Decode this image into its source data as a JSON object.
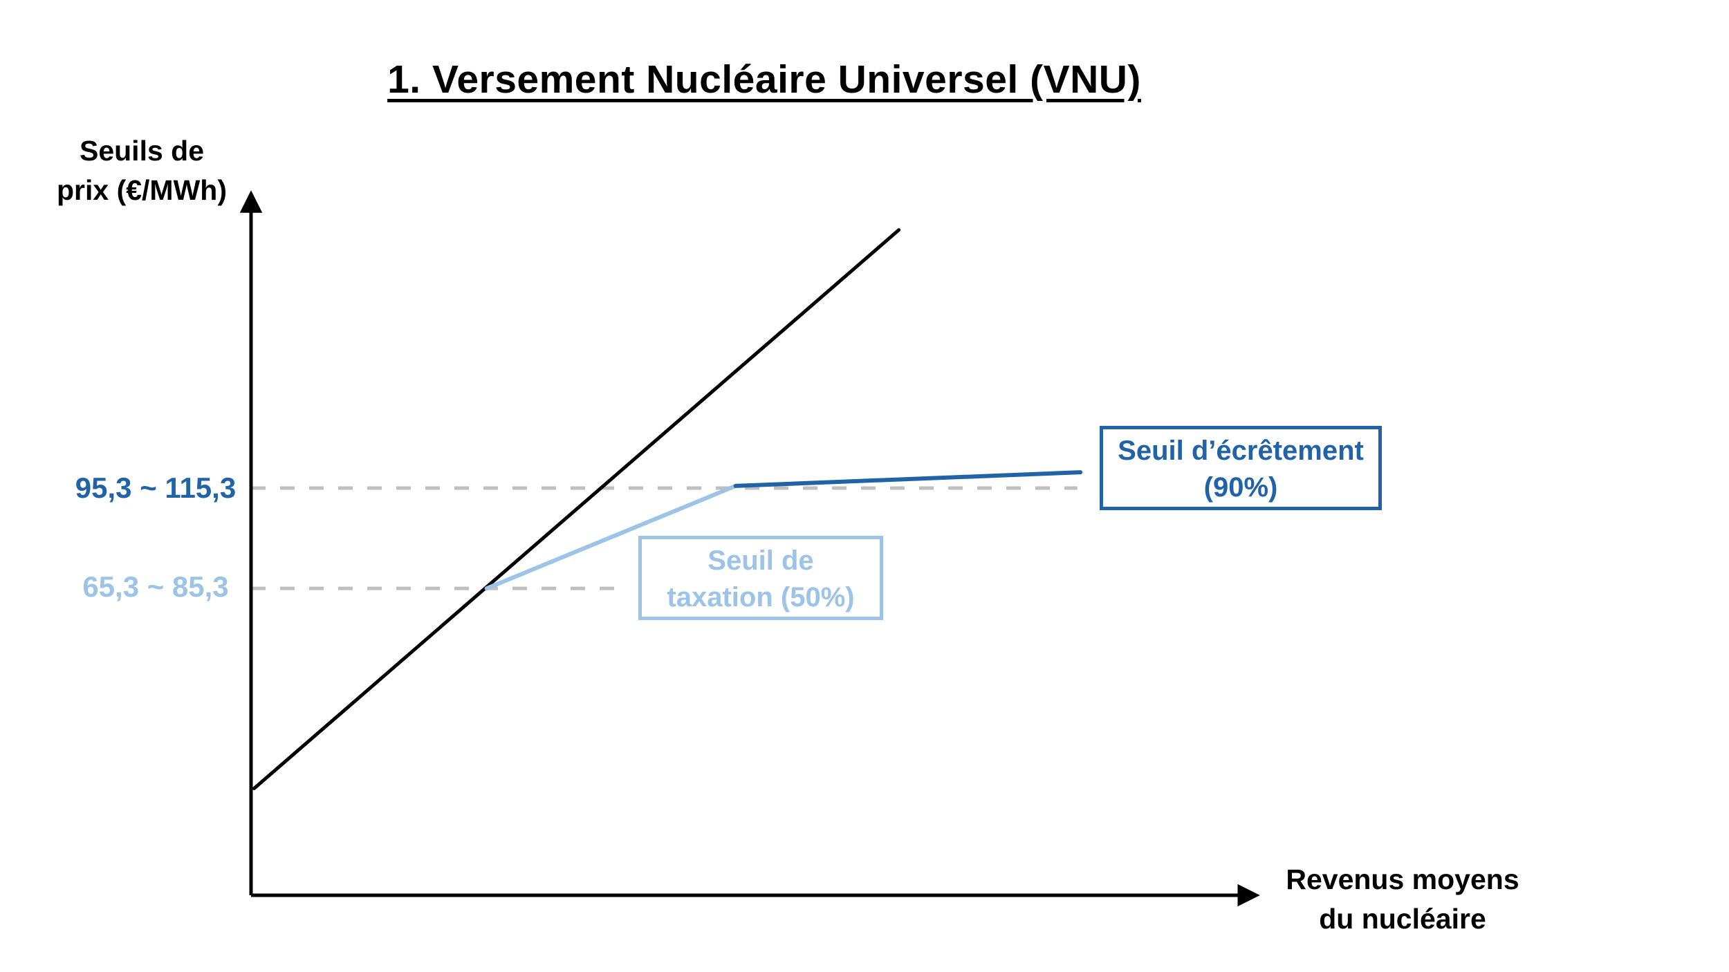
{
  "page": {
    "background": "#FFFFFF"
  },
  "chart_data": {
    "type": "line",
    "title": "1. Versement Nucléaire Universel (VNU)",
    "xlabel": "Revenus moyens du nucléaire",
    "xlabel_lines": [
      "Revenus moyens",
      "du nucléaire"
    ],
    "ylabel": "Seuils de prix (€/MWh)",
    "ylabel_lines": [
      "Seuils de",
      "prix (€/MWh)"
    ],
    "grid": false,
    "axes_have_numeric_ticks": false,
    "legend": "none",
    "colors": {
      "axis": "#000000",
      "dashed_guide": "#BFBFBF",
      "taxation_light_blue": "#9DC3E6",
      "ecretement_dark_blue": "#2263A8"
    },
    "y_tick_labels": [
      {
        "name": "ecretement-threshold",
        "text": "95,3 ~ 115,3",
        "values": [
          95.3,
          115.3
        ],
        "unit": "€/MWh",
        "color": "#2263A8",
        "y_frac": 56.8
      },
      {
        "name": "taxation-threshold",
        "text": "65,3 ~ 85,3",
        "values": [
          65.3,
          85.3
        ],
        "unit": "€/MWh",
        "color": "#9DC3E6",
        "y_frac": 42.8
      }
    ],
    "series": [
      {
        "name": "market-revenue-line",
        "color": "#000000",
        "width": 5,
        "points": [
          [
            0.3,
            14.9
          ],
          [
            63.5,
            92.8
          ]
        ]
      },
      {
        "name": "after-taxation-50-line",
        "color": "#9DC3E6",
        "width": 6,
        "points": [
          [
            23.1,
            42.8
          ],
          [
            47.5,
            57.1
          ]
        ]
      },
      {
        "name": "after-ecretement-90-line",
        "color": "#2263A8",
        "width": 6,
        "points": [
          [
            47.5,
            57.1
          ],
          [
            81.3,
            59.0
          ]
        ]
      }
    ],
    "guides": [
      {
        "name": "ecretement-dashed-guide",
        "color": "#BFBFBF",
        "width": 5,
        "dash": [
          21,
          21
        ],
        "y_frac": 56.8,
        "x_from_frac": 0,
        "x_to_frac": 81.0
      },
      {
        "name": "taxation-dashed-guide",
        "color": "#BFBFBF",
        "width": 5,
        "dash": [
          21,
          21
        ],
        "y_frac": 42.8,
        "x_from_frac": 0,
        "x_to_frac": 36.4
      }
    ],
    "annotations": [
      {
        "name": "taxation-label-box",
        "text": "Seuil de taxation (50%)",
        "lines": [
          "Seuil de",
          "taxation (50%)"
        ],
        "color": "#9DC3E6"
      },
      {
        "name": "ecretement-label-box",
        "text": "Seuil d’écrêtement (90%)",
        "lines": [
          "Seuil d’écrêtement",
          "(90%)"
        ],
        "color": "#2263A8"
      }
    ]
  }
}
